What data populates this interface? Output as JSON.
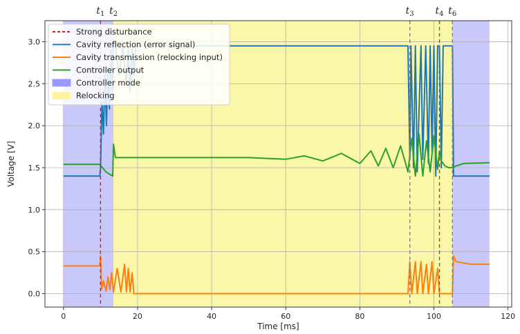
{
  "chart_data": {
    "type": "line",
    "title": "",
    "xlabel": "Time [ms]",
    "ylabel": "Voltage [V]",
    "xlim": [
      -5,
      121
    ],
    "ylim": [
      -0.16,
      3.25
    ],
    "x_ticks": [
      0,
      20,
      40,
      60,
      80,
      100,
      120
    ],
    "y_ticks": [
      0.0,
      0.5,
      1.0,
      1.5,
      2.0,
      2.5,
      3.0
    ],
    "grid": true,
    "legend_position": "top-left",
    "legend": [
      {
        "label": "Strong disturbance",
        "color": "#e31a1c",
        "style": "dashed"
      },
      {
        "label": "Cavity reflection (error signal)",
        "color": "#1f77b4",
        "style": "solid"
      },
      {
        "label": "Cavity transmission (relocking input)",
        "color": "#ff7f0e",
        "style": "solid"
      },
      {
        "label": "Controller output",
        "color": "#2ca02c",
        "style": "solid"
      },
      {
        "label": "Controller mode",
        "color": "#9999ff",
        "style": "patch"
      },
      {
        "label": "Relocking",
        "color": "#fff59d",
        "style": "patch"
      }
    ],
    "spans": [
      {
        "name": "Controller mode",
        "x0": 0,
        "x1": 13.5,
        "color": "#c8c8fa"
      },
      {
        "name": "Relocking",
        "x0": 13.5,
        "x1": 105,
        "color": "#fbf7a8"
      },
      {
        "name": "Controller mode",
        "x0": 105,
        "x1": 115,
        "color": "#c8c8fa"
      }
    ],
    "event_lines": [
      {
        "x": 10,
        "color": "#e31a1c",
        "style": "dashed"
      },
      {
        "x": 93.5,
        "color": "#808080",
        "style": "dashed"
      },
      {
        "x": 101.5,
        "color": "#606060",
        "style": "dashed"
      },
      {
        "x": 105,
        "color": "#808080",
        "style": "dashed"
      }
    ],
    "time_markers": [
      {
        "base": "t",
        "sub": "1",
        "x": 10
      },
      {
        "base": "t",
        "sub": "2",
        "x": 13.5
      },
      {
        "base": "t",
        "sub": "3",
        "x": 93.5
      },
      {
        "base": "t",
        "sub": "4",
        "x": 101.5
      },
      {
        "base": "t",
        "sub": "6",
        "x": 105
      }
    ],
    "series": [
      {
        "name": "Cavity reflection (error signal)",
        "color": "#1f77b4",
        "x": [
          0,
          9.8,
          10,
          10.4,
          10.8,
          11.2,
          11.6,
          12.0,
          12.4,
          12.8,
          13.2,
          13.5,
          14,
          15,
          16,
          17,
          17.5,
          18,
          18.5,
          19,
          19.5,
          20,
          25,
          40,
          60,
          80,
          93,
          93.5,
          93.8,
          94.5,
          95,
          95.5,
          96.5,
          97,
          97.8,
          98.5,
          99,
          99.5,
          100,
          100.5,
          101,
          101.5,
          102,
          102.5,
          103,
          104,
          104.8,
          105,
          105.3,
          115
        ],
        "y": [
          1.4,
          1.4,
          1.5,
          2.3,
          1.9,
          2.6,
          2.0,
          2.7,
          2.2,
          2.9,
          2.4,
          3.0,
          2.95,
          2.6,
          2.95,
          2.5,
          2.95,
          2.4,
          2.95,
          2.6,
          2.95,
          2.95,
          2.95,
          2.95,
          2.95,
          2.95,
          2.95,
          1.6,
          2.95,
          1.5,
          2.95,
          1.45,
          2.95,
          1.6,
          2.95,
          1.55,
          2.95,
          1.7,
          2.95,
          1.4,
          2.95,
          2.95,
          1.5,
          2.95,
          2.95,
          2.95,
          2.95,
          2.95,
          1.4,
          1.4
        ]
      },
      {
        "name": "Cavity transmission (relocking input)",
        "color": "#ff7f0e",
        "x": [
          0,
          9.8,
          10,
          10.3,
          10.8,
          11.5,
          12.0,
          12.5,
          13.0,
          13.5,
          14.5,
          15.5,
          16.5,
          17.0,
          17.5,
          18.0,
          18.5,
          19.0,
          20,
          40,
          60,
          80,
          93,
          93.5,
          94,
          95,
          95.5,
          96.5,
          97,
          98,
          98.5,
          99.5,
          100,
          101,
          101.5,
          102,
          105,
          105.3,
          106,
          110,
          115
        ],
        "y": [
          0.33,
          0.33,
          0.45,
          0.05,
          0.15,
          0.03,
          0.2,
          0.05,
          0.25,
          0.02,
          0.3,
          0.02,
          0.35,
          0.02,
          0.3,
          0.02,
          0.25,
          0.0,
          0.0,
          0.0,
          0.0,
          0.0,
          0.0,
          0.38,
          0.0,
          0.38,
          0.0,
          0.38,
          0.0,
          0.35,
          0.0,
          0.38,
          0.0,
          0.3,
          0.0,
          0.0,
          0.0,
          0.45,
          0.38,
          0.35,
          0.35
        ]
      },
      {
        "name": "Controller output",
        "color": "#2ca02c",
        "x": [
          0,
          9.8,
          10.5,
          11.5,
          12.5,
          13.3,
          13.5,
          14,
          20,
          40,
          50,
          60,
          65,
          70,
          75,
          80,
          83,
          85,
          87,
          89,
          91,
          93,
          94,
          95,
          96,
          97,
          98,
          99,
          100,
          101,
          101.5,
          102,
          103,
          104,
          105,
          106,
          108,
          115
        ],
        "y": [
          1.54,
          1.54,
          1.5,
          1.45,
          1.42,
          1.4,
          1.78,
          1.62,
          1.62,
          1.62,
          1.62,
          1.6,
          1.64,
          1.58,
          1.67,
          1.55,
          1.7,
          1.52,
          1.73,
          1.5,
          1.76,
          1.45,
          1.85,
          1.4,
          1.9,
          1.4,
          1.82,
          1.45,
          1.88,
          1.48,
          1.7,
          1.58,
          1.52,
          1.5,
          1.5,
          1.52,
          1.55,
          1.56
        ]
      }
    ]
  }
}
